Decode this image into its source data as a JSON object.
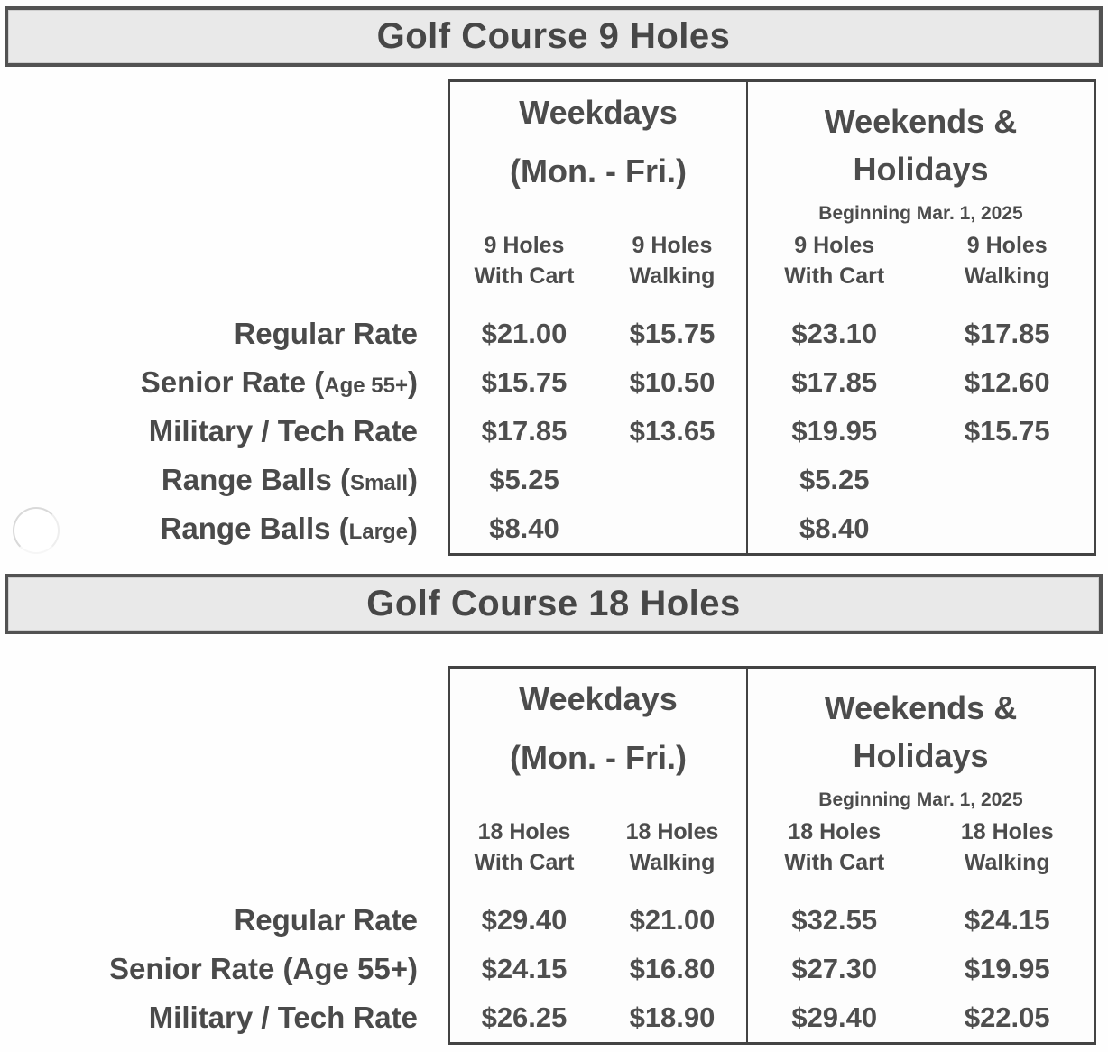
{
  "colors": {
    "banner_bg": "#e9e9e9",
    "banner_border": "#525252",
    "table_border": "#434343",
    "text": "#4a4a4a",
    "page_bg": "#ffffff"
  },
  "section9": {
    "banner": "Golf Course 9 Holes",
    "weekday": {
      "title1": "Weekdays",
      "title2": "(Mon. - Fri.)"
    },
    "weekend": {
      "title1": "Weekends &",
      "title2": "Holidays",
      "note": "Beginning Mar. 1, 2025"
    },
    "subcols": [
      {
        "l1": "9 Holes",
        "l2": "With Cart"
      },
      {
        "l1": "9 Holes",
        "l2": "Walking"
      },
      {
        "l1": "9 Holes",
        "l2": "With Cart"
      },
      {
        "l1": "9 Holes",
        "l2": "Walking"
      }
    ],
    "rows": [
      {
        "pre": "Regular Rate",
        "small": "",
        "post": "",
        "prices": [
          "$21.00",
          "$15.75",
          "$23.10",
          "$17.85"
        ]
      },
      {
        "pre": "Senior Rate (",
        "small": "Age 55+",
        "post": ")",
        "prices": [
          "$15.75",
          "$10.50",
          "$17.85",
          "$12.60"
        ]
      },
      {
        "pre": "Military / Tech Rate",
        "small": "",
        "post": "",
        "prices": [
          "$17.85",
          "$13.65",
          "$19.95",
          "$15.75"
        ]
      },
      {
        "pre": "Range Balls (",
        "small": "Small",
        "post": ")",
        "prices": [
          "$5.25",
          "",
          "$5.25",
          ""
        ]
      },
      {
        "pre": "Range Balls (",
        "small": "Large",
        "post": ")",
        "prices": [
          "$8.40",
          "",
          "$8.40",
          ""
        ]
      }
    ]
  },
  "section18": {
    "banner": "Golf Course 18 Holes",
    "weekday": {
      "title1": "Weekdays",
      "title2": "(Mon. - Fri.)"
    },
    "weekend": {
      "title1": "Weekends &",
      "title2": "Holidays",
      "note": "Beginning Mar. 1, 2025"
    },
    "subcols": [
      {
        "l1": "18 Holes",
        "l2": "With Cart"
      },
      {
        "l1": "18 Holes",
        "l2": "Walking"
      },
      {
        "l1": "18 Holes",
        "l2": "With Cart"
      },
      {
        "l1": "18 Holes",
        "l2": "Walking"
      }
    ],
    "rows": [
      {
        "pre": "Regular Rate",
        "small": "",
        "post": "",
        "prices": [
          "$29.40",
          "$21.00",
          "$32.55",
          "$24.15"
        ]
      },
      {
        "pre": "Senior Rate (Age 55+)",
        "small": "",
        "post": "",
        "prices": [
          "$24.15",
          "$16.80",
          "$27.30",
          "$19.95"
        ]
      },
      {
        "pre": "Military / Tech Rate",
        "small": "",
        "post": "",
        "prices": [
          "$26.25",
          "$18.90",
          "$29.40",
          "$22.05"
        ]
      }
    ]
  }
}
